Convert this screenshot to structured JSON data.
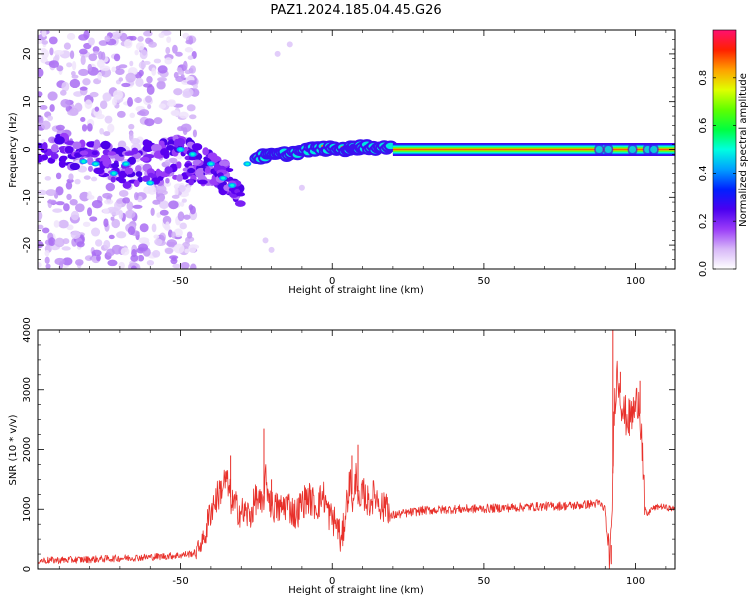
{
  "title": "PAZ1.2024.185.04.45.G26",
  "chart_data": [
    {
      "type": "heatmap",
      "title": "PAZ1.2024.185.04.45.G26",
      "xlabel": "Height of straight line (km)",
      "ylabel": "Frequency (Hz)",
      "xlim": [
        -97,
        113
      ],
      "ylim": [
        -25,
        25
      ],
      "x_ticks": [
        -50,
        0,
        50,
        100
      ],
      "y_ticks": [
        -20,
        -10,
        0,
        10,
        20
      ],
      "colorbar": {
        "label": "Normalized spectral amplitude",
        "range": [
          0,
          1
        ],
        "ticks": [
          0.0,
          0.2,
          0.4,
          0.6,
          0.8
        ],
        "tick_labels": [
          "0.0",
          "0.2",
          "0.4",
          "0.6",
          "0.8"
        ],
        "colors": [
          "#ffffff",
          "#d8b8f8",
          "#9a3cf8",
          "#4a00f0",
          "#0020ff",
          "#00a0ff",
          "#00ffe0",
          "#00ff40",
          "#60ff00",
          "#e0ff00",
          "#ffa000",
          "#ff2000",
          "#ff1070"
        ]
      },
      "main_tone": {
        "points": [
          {
            "x": -25,
            "y": -1.6
          },
          {
            "x": -15,
            "y": -0.9
          },
          {
            "x": -5,
            "y": 0.2
          },
          {
            "x": 5,
            "y": 0.1
          },
          {
            "x": 10,
            "y": 0.6
          },
          {
            "x": 20,
            "y": 0.1
          },
          {
            "x": 50,
            "y": 0.0
          },
          {
            "x": 113,
            "y": 0.0
          }
        ],
        "solid_from_x": 20
      },
      "diffuse_noise_range_x": [
        -97,
        -45
      ]
    },
    {
      "type": "line",
      "xlabel": "Height of straight line (km)",
      "ylabel": "SNR (10 * v/v)",
      "xlim": [
        -97,
        113
      ],
      "ylim": [
        0,
        4000
      ],
      "x_ticks": [
        -50,
        0,
        50,
        100
      ],
      "y_ticks": [
        0,
        1000,
        2000,
        3000,
        4000
      ],
      "color": "#e8302a",
      "x": [
        -97,
        -80,
        -60,
        -50,
        -45,
        -42,
        -40,
        -38,
        -35,
        -33,
        -30,
        -27,
        -25,
        -23,
        -22,
        -20,
        -17,
        -15,
        -12,
        -10,
        -8,
        -5,
        -3,
        -1,
        0,
        2,
        3,
        5,
        6,
        7,
        8,
        9,
        10,
        12,
        14,
        17,
        18,
        19,
        20,
        30,
        40,
        50,
        60,
        70,
        80,
        88,
        90,
        91,
        92,
        93,
        94,
        96,
        98,
        100,
        101,
        102,
        103,
        104,
        105,
        108,
        113
      ],
      "y": [
        140,
        160,
        200,
        230,
        270,
        550,
        1000,
        1200,
        1500,
        1100,
        950,
        900,
        1200,
        1000,
        1500,
        1050,
        1000,
        1100,
        900,
        1100,
        1200,
        1050,
        1250,
        900,
        850,
        700,
        400,
        1200,
        1500,
        1000,
        1700,
        900,
        1300,
        1100,
        1250,
        1000,
        1200,
        850,
        900,
        980,
        1000,
        1010,
        1030,
        1050,
        1060,
        1100,
        1000,
        250,
        400,
        2800,
        3300,
        2600,
        2500,
        2700,
        2900,
        2300,
        1000,
        900,
        1000,
        1050,
        1000
      ],
      "spikes": [
        {
          "x": -33.5,
          "y": 1900
        },
        {
          "x": -22.5,
          "y": 2350
        },
        {
          "x": -20,
          "y": 1500
        },
        {
          "x": 6.5,
          "y": 1900
        },
        {
          "x": 8.5,
          "y": 2080
        },
        {
          "x": 92.5,
          "y": 4100
        },
        {
          "x": 92.0,
          "y": 80
        },
        {
          "x": 95,
          "y": 3300
        },
        {
          "x": 101.5,
          "y": 3150
        }
      ]
    }
  ]
}
